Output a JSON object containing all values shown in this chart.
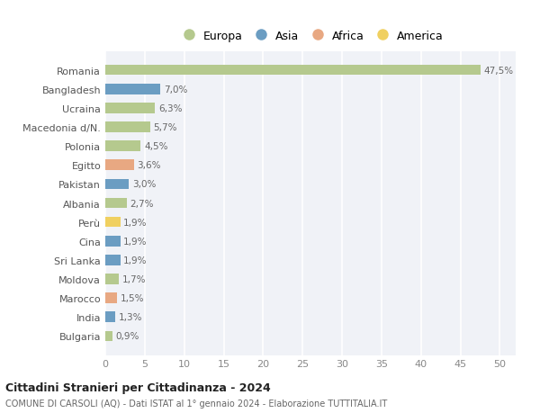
{
  "countries": [
    "Romania",
    "Bangladesh",
    "Ucraina",
    "Macedonia d/N.",
    "Polonia",
    "Egitto",
    "Pakistan",
    "Albania",
    "Perù",
    "Cina",
    "Sri Lanka",
    "Moldova",
    "Marocco",
    "India",
    "Bulgaria"
  ],
  "values": [
    47.5,
    7.0,
    6.3,
    5.7,
    4.5,
    3.6,
    3.0,
    2.7,
    1.9,
    1.9,
    1.9,
    1.7,
    1.5,
    1.3,
    0.9
  ],
  "labels": [
    "47,5%",
    "7,0%",
    "6,3%",
    "5,7%",
    "4,5%",
    "3,6%",
    "3,0%",
    "2,7%",
    "1,9%",
    "1,9%",
    "1,9%",
    "1,7%",
    "1,5%",
    "1,3%",
    "0,9%"
  ],
  "continent": [
    "Europa",
    "Asia",
    "Europa",
    "Europa",
    "Europa",
    "Africa",
    "Asia",
    "Europa",
    "America",
    "Asia",
    "Asia",
    "Europa",
    "Africa",
    "Asia",
    "Europa"
  ],
  "colors": {
    "Europa": "#b5c98e",
    "Asia": "#6b9dc2",
    "Africa": "#e8a882",
    "America": "#f0d060"
  },
  "legend_items": [
    "Europa",
    "Asia",
    "Africa",
    "America"
  ],
  "title": "Cittadini Stranieri per Cittadinanza - 2024",
  "subtitle": "COMUNE DI CARSOLI (AQ) - Dati ISTAT al 1° gennaio 2024 - Elaborazione TUTTITALIA.IT",
  "xlim": [
    0,
    52
  ],
  "xticks": [
    0,
    5,
    10,
    15,
    20,
    25,
    30,
    35,
    40,
    45,
    50
  ],
  "bg_color": "#ffffff",
  "plot_bg_color": "#f0f2f7",
  "grid_color": "#ffffff"
}
